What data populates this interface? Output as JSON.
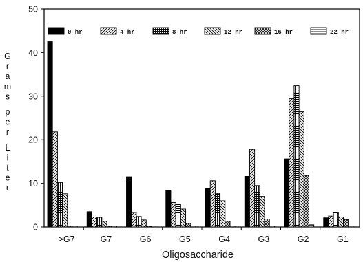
{
  "chart_data": {
    "type": "bar",
    "title": "",
    "xlabel": "Oligosaccharide",
    "ylabel": "Grams per Liter",
    "ylim": [
      0,
      50
    ],
    "yticks": [
      0,
      10,
      20,
      30,
      40,
      50
    ],
    "grid": false,
    "legend_position": "top",
    "categories": [
      ">G7",
      "G7",
      "G6",
      "G5",
      "G4",
      "G3",
      "G2",
      "G1"
    ],
    "series": [
      {
        "name": "0 hr",
        "pattern": "solid",
        "values": [
          42.5,
          3.5,
          11.5,
          8.3,
          8.8,
          11.6,
          15.6,
          2.1
        ]
      },
      {
        "name": "4 hr",
        "pattern": "diag-right",
        "values": [
          21.8,
          2.3,
          3.3,
          5.6,
          10.6,
          17.8,
          29.4,
          2.5
        ]
      },
      {
        "name": "8 hr",
        "pattern": "grid",
        "values": [
          10.2,
          2.2,
          2.4,
          5.2,
          7.7,
          9.5,
          32.4,
          3.3
        ]
      },
      {
        "name": "12 hr",
        "pattern": "diag-left",
        "values": [
          7.6,
          1.3,
          1.6,
          4.1,
          6.0,
          7.0,
          26.4,
          2.3
        ]
      },
      {
        "name": "16 hr",
        "pattern": "crosshatch",
        "values": [
          0.2,
          0.2,
          0.2,
          0.8,
          1.3,
          1.8,
          11.8,
          1.7
        ]
      },
      {
        "name": "22 hr",
        "pattern": "horizontal",
        "values": [
          0.2,
          0.2,
          0.2,
          0.2,
          0.2,
          0.2,
          0.5,
          0.2
        ]
      }
    ]
  }
}
